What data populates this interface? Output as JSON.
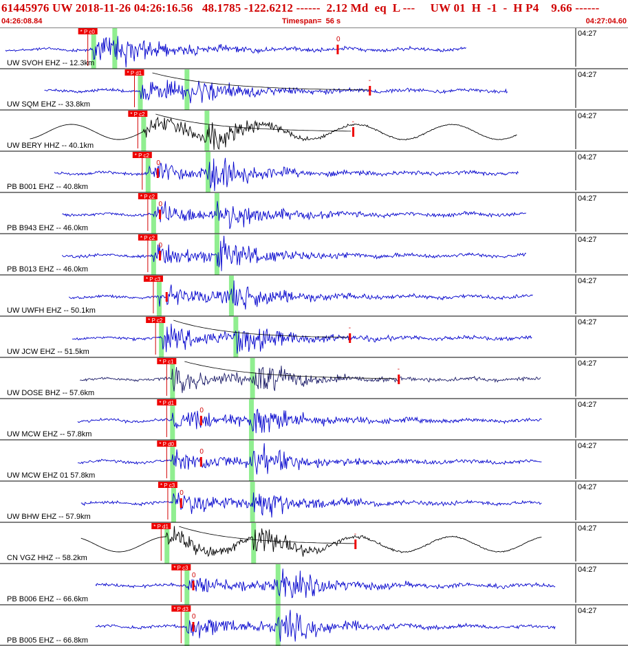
{
  "header": {
    "title": "61445976 UW 2018-11-26 04:26:16.56   48.1785 -122.6212 ------  2.12 Md  eq  L ---     UW 01  H  -1  -  H P4    9.66 ------",
    "start_time": "04:26:08.84",
    "timespan": "Timespan=  56 s",
    "end_time": "04:27:04.60"
  },
  "colors": {
    "title": "#d00000",
    "trace_default": "#0000cc",
    "trace_broadband": "#000000",
    "trace_dark": "#1a1a66",
    "pick_box": "#ee0000",
    "phase_window": "#90ee90",
    "coda_marker": "#ee0000"
  },
  "chart_data": {
    "type": "seismogram",
    "time_range_s": [
      0,
      56
    ],
    "tick_label": "04:27",
    "traces": [
      {
        "label": "UW SVOH EHZ -- 12.3km",
        "pick": "P c0",
        "p_s": 8.4,
        "s_s": 10.3,
        "wave_start_s": 0.0,
        "wave_end_s": 42.0,
        "coda_s": 30.4,
        "coda_label": "0",
        "curve": false,
        "kind": "short_period"
      },
      {
        "label": "UW SQM EHZ -- 33.8km",
        "pick": "P d1",
        "p_s": 12.6,
        "s_s": 16.8,
        "wave_start_s": 3.5,
        "wave_end_s": 45.7,
        "coda_s": 33.3,
        "coda_label": "-",
        "curve": true,
        "kind": "short_period"
      },
      {
        "label": "UW BERY HHZ -- 40.1km",
        "pick": "P c2",
        "p_s": 12.9,
        "s_s": 18.6,
        "wave_start_s": 2.2,
        "wave_end_s": 46.6,
        "coda_s": 31.8,
        "coda_label": "-",
        "curve": true,
        "kind": "broadband"
      },
      {
        "label": "PB B001 EHZ -- 40.8km",
        "pick": "P c2",
        "p_s": 13.3,
        "s_s": 18.7,
        "wave_start_s": 4.4,
        "wave_end_s": 46.7,
        "coda_s": 14.2,
        "coda_label": "0",
        "curve": false,
        "kind": "short_period"
      },
      {
        "label": "PB B943 EHZ -- 46.0km",
        "pick": "P c2",
        "p_s": 13.8,
        "s_s": 19.5,
        "wave_start_s": 5.1,
        "wave_end_s": 47.4,
        "coda_s": 14.4,
        "coda_label": "0",
        "curve": false,
        "kind": "short_period"
      },
      {
        "label": "PB B013 EHZ -- 46.0km",
        "pick": "P c2",
        "p_s": 13.8,
        "s_s": 19.5,
        "wave_start_s": 5.1,
        "wave_end_s": 47.4,
        "coda_s": 14.4,
        "coda_label": "0",
        "curve": false,
        "kind": "short_period"
      },
      {
        "label": "UW UWFH EHZ -- 50.1km",
        "pick": "P c3",
        "p_s": 14.3,
        "s_s": 20.8,
        "wave_start_s": 5.7,
        "wave_end_s": 48.0,
        "coda_s": 15.0,
        "coda_label": "",
        "curve": false,
        "kind": "short_period"
      },
      {
        "label": "UW JCW EHZ -- 51.5km",
        "pick": "P c2",
        "p_s": 14.5,
        "s_s": 21.2,
        "wave_start_s": 6.0,
        "wave_end_s": 47.9,
        "coda_s": 31.5,
        "coda_label": "-",
        "curve": true,
        "kind": "short_period"
      },
      {
        "label": "UW DOSE BHZ -- 57.6km",
        "pick": "P c1",
        "p_s": 15.5,
        "s_s": 22.7,
        "wave_start_s": 6.7,
        "wave_end_s": 48.7,
        "coda_s": 35.9,
        "coda_label": "-",
        "curve": true,
        "kind": "dark"
      },
      {
        "label": "UW MCW EHZ -- 57.8km",
        "pick": "P d1",
        "p_s": 15.5,
        "s_s": 22.6,
        "wave_start_s": 6.5,
        "wave_end_s": 48.8,
        "coda_s": 18.1,
        "coda_label": "0",
        "curve": false,
        "kind": "short_period"
      },
      {
        "label": "UW MCW EHZ 01 57.8km",
        "pick": "P d0",
        "p_s": 15.5,
        "s_s": 22.6,
        "wave_start_s": 6.5,
        "wave_end_s": 48.8,
        "coda_s": 18.1,
        "coda_label": "0",
        "curve": false,
        "kind": "short_period"
      },
      {
        "label": "UW BHW EHZ -- 57.9km",
        "pick": "P c3",
        "p_s": 15.6,
        "s_s": 22.7,
        "wave_start_s": 6.8,
        "wave_end_s": 48.8,
        "coda_s": 16.3,
        "coda_label": "0",
        "curve": false,
        "kind": "short_period"
      },
      {
        "label": "CN VGZ HHZ -- 58.2km",
        "pick": "P d1",
        "p_s": 15.0,
        "s_s": 22.8,
        "wave_start_s": 6.8,
        "wave_end_s": 48.8,
        "coda_s": 32.0,
        "coda_label": "-",
        "curve": true,
        "kind": "broadband"
      },
      {
        "label": "PB B006 EHZ -- 66.6km",
        "pick": "P c3",
        "p_s": 16.8,
        "s_s": 25.0,
        "wave_start_s": 8.1,
        "wave_end_s": 50.0,
        "coda_s": 17.4,
        "coda_label": "0",
        "curve": false,
        "kind": "short_period"
      },
      {
        "label": "PB B005 EHZ -- 66.8km",
        "pick": "P d3",
        "p_s": 16.8,
        "s_s": 25.0,
        "wave_start_s": 8.1,
        "wave_end_s": 50.0,
        "coda_s": 17.4,
        "coda_label": "0",
        "curve": false,
        "kind": "short_period"
      }
    ]
  }
}
